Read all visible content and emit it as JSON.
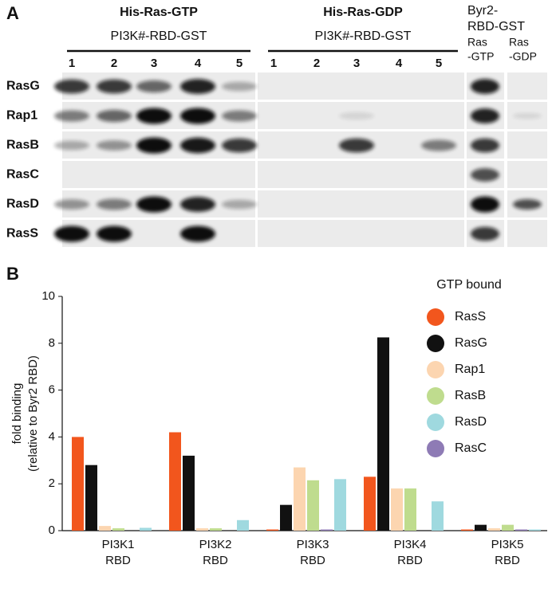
{
  "panel_a": {
    "label": "A",
    "groups": [
      {
        "title": "His-Ras-GTP",
        "subtitle": "PI3K#-RBD-GST",
        "lanes": [
          "1",
          "2",
          "3",
          "4",
          "5"
        ]
      },
      {
        "title": "His-Ras-GDP",
        "subtitle": "PI3K#-RBD-GST",
        "lanes": [
          "1",
          "2",
          "3",
          "4",
          "5"
        ]
      }
    ],
    "control_title": [
      "Byr2-",
      "RBD-GST"
    ],
    "control_lanes": [
      [
        "Ras",
        "-GTP"
      ],
      [
        "Ras",
        "-GDP"
      ]
    ],
    "rows": [
      "RasG",
      "Rap1",
      "RasB",
      "RasC",
      "RasD",
      "RasS"
    ]
  },
  "chart_data": {
    "type": "bar",
    "panel_label": "B",
    "ylabel_lines": [
      "fold binding",
      "(relative to Byr2 RBD)"
    ],
    "categories": [
      "PI3K1 RBD",
      "PI3K2 RBD",
      "PI3K3 RBD",
      "PI3K4 RBD",
      "PI3K5 RBD"
    ],
    "legend_title": "GTP bound",
    "series": [
      {
        "name": "RasS",
        "color": "#f2561d",
        "values": [
          4.0,
          4.2,
          0.05,
          2.3,
          0.05
        ]
      },
      {
        "name": "RasG",
        "color": "#111111",
        "values": [
          2.8,
          3.2,
          1.1,
          8.25,
          0.25
        ]
      },
      {
        "name": "Rap1",
        "color": "#fcd5b0",
        "values": [
          0.2,
          0.1,
          2.7,
          1.8,
          0.1
        ]
      },
      {
        "name": "RasB",
        "color": "#bfdc8e",
        "values": [
          0.1,
          0.1,
          2.15,
          1.8,
          0.25
        ]
      },
      {
        "name": "RasD",
        "color": "#9fd9df",
        "values": [
          0.12,
          0.45,
          2.2,
          1.25,
          0.05
        ]
      },
      {
        "name": "RasC",
        "color": "#8e7bb5",
        "values": [
          0,
          0,
          0.05,
          0,
          0.05
        ]
      }
    ],
    "ylim": [
      0,
      10
    ],
    "yticks": [
      0,
      2,
      4,
      6,
      8,
      10
    ]
  }
}
